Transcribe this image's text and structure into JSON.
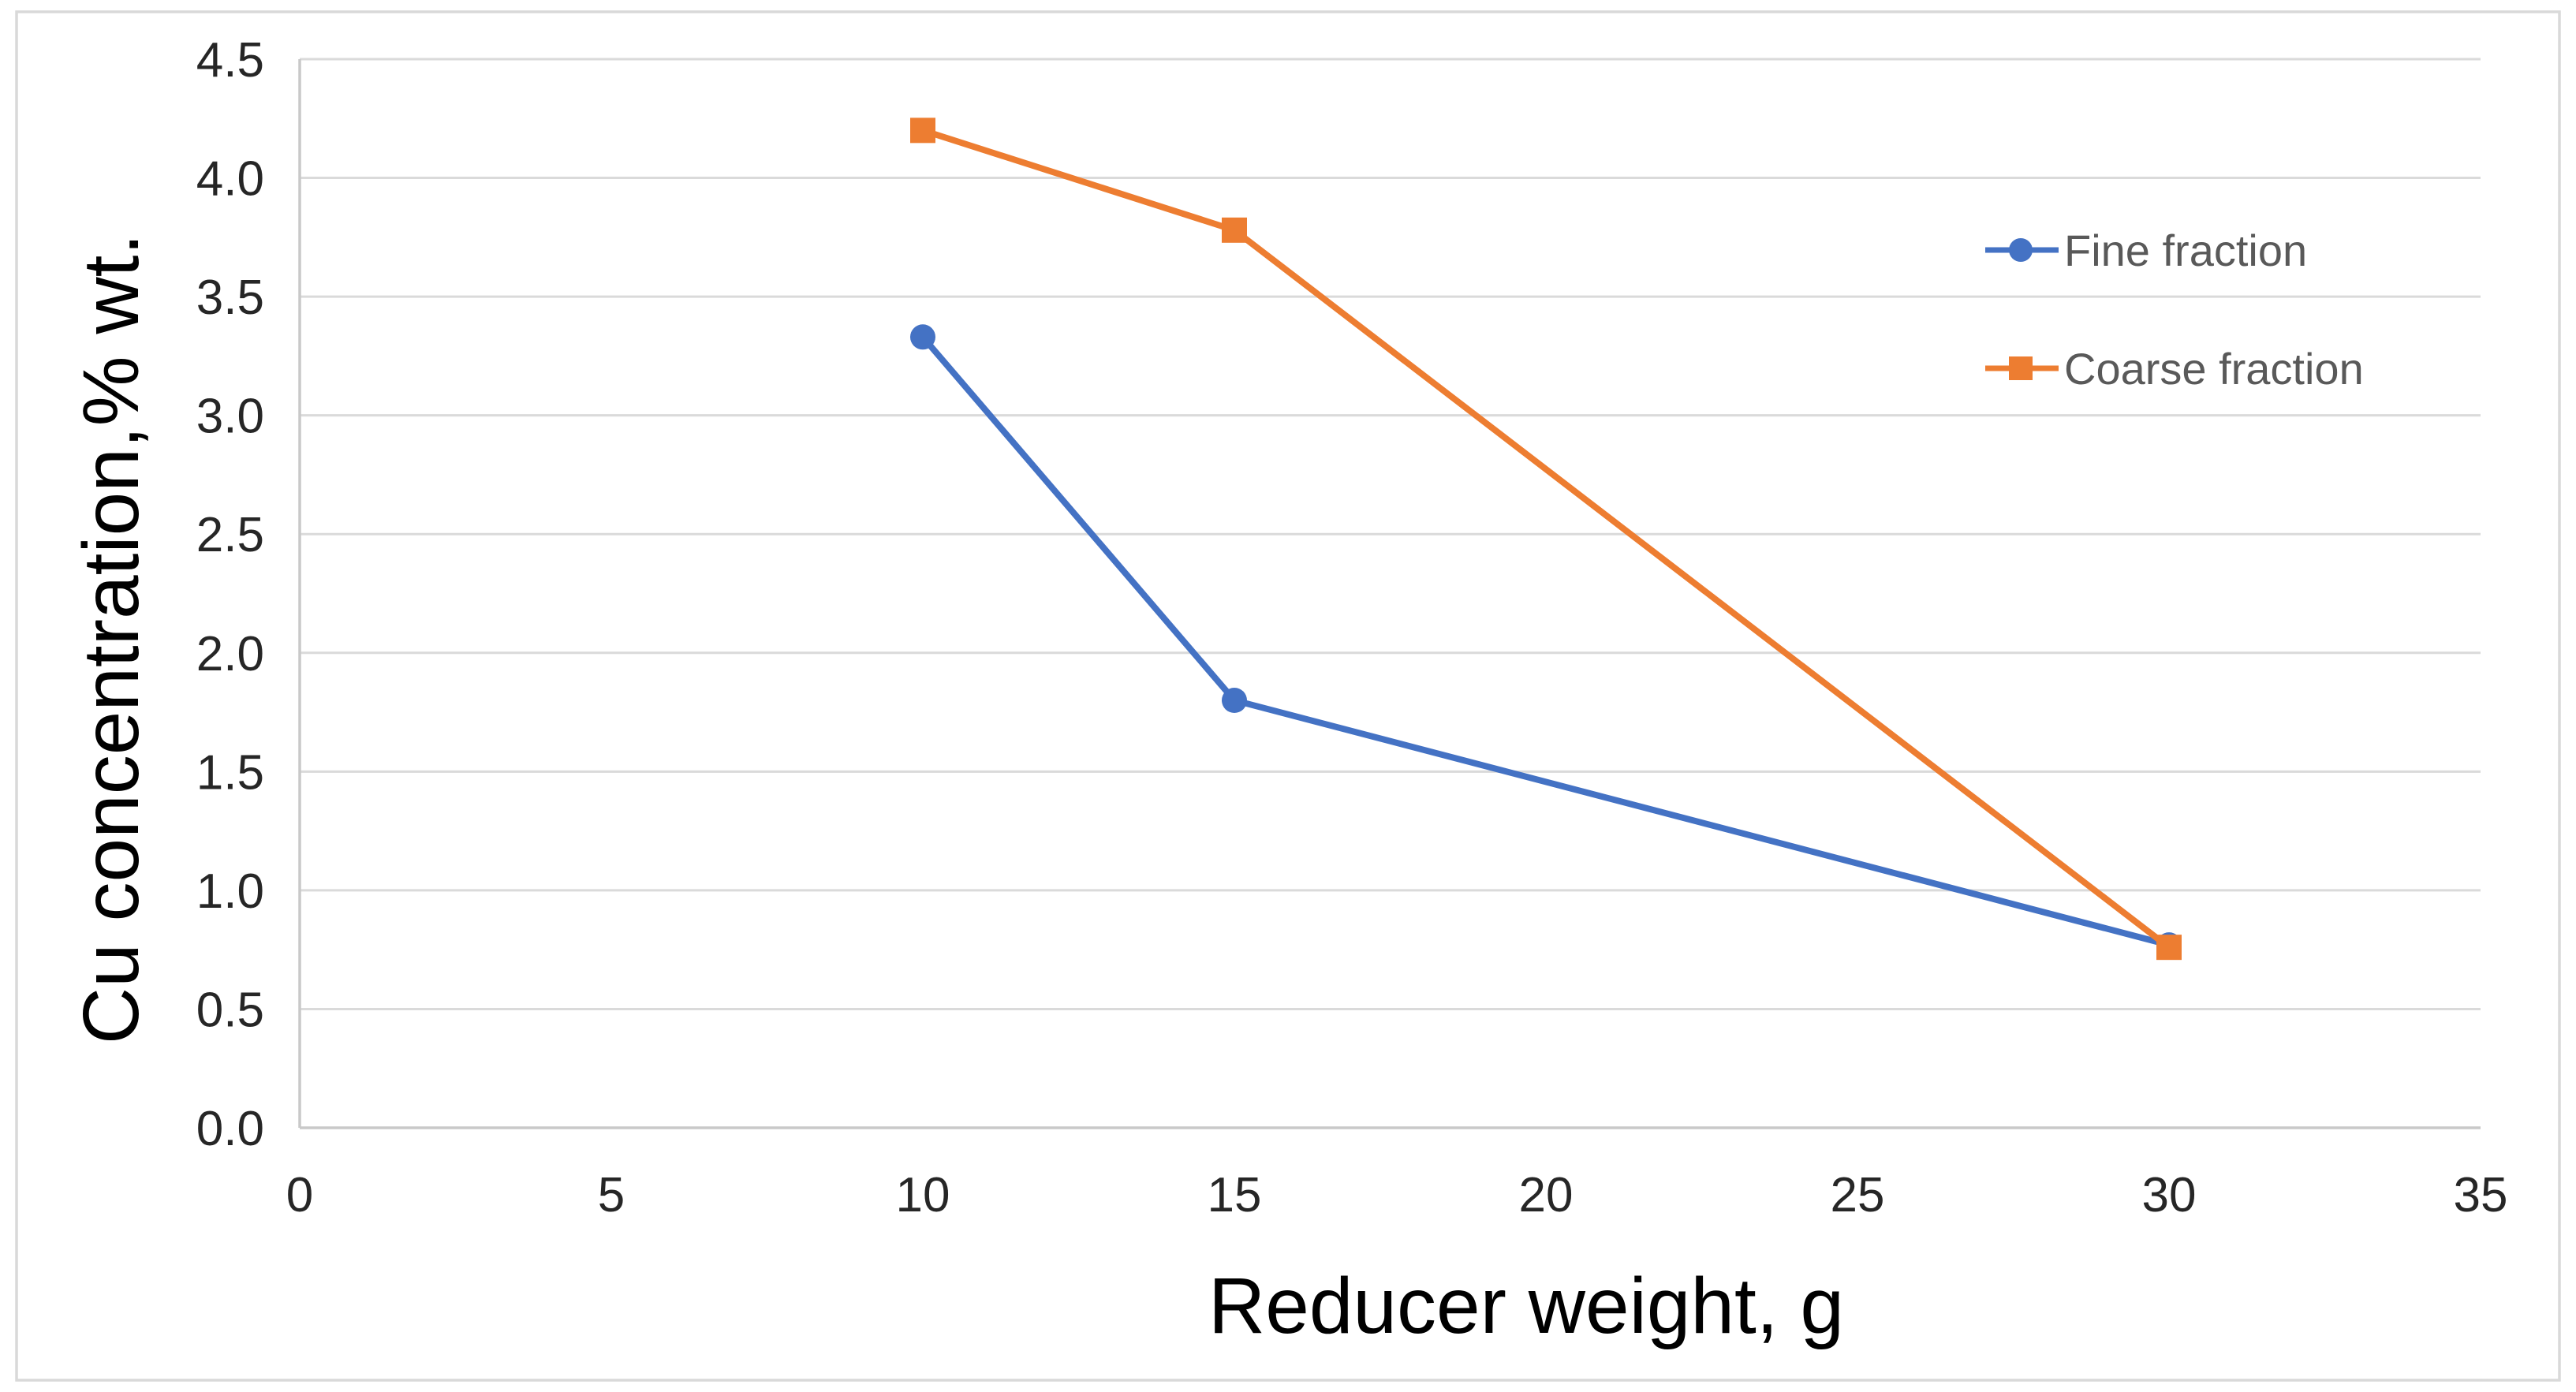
{
  "chart_data": {
    "type": "line",
    "title": "",
    "xlabel": "Reducer weight, g",
    "ylabel": "Cu concentration,% wt.",
    "xlim": [
      0,
      35
    ],
    "ylim": [
      0,
      4.5
    ],
    "x_ticks": [
      "0",
      "5",
      "10",
      "15",
      "20",
      "25",
      "30",
      "35"
    ],
    "x_tick_values": [
      0,
      5,
      10,
      15,
      20,
      25,
      30,
      35
    ],
    "y_ticks": [
      "0.0",
      "0.5",
      "1.0",
      "1.5",
      "2.0",
      "2.5",
      "3.0",
      "3.5",
      "4.0",
      "4.5"
    ],
    "y_tick_values": [
      0,
      0.5,
      1.0,
      1.5,
      2.0,
      2.5,
      3.0,
      3.5,
      4.0,
      4.5
    ],
    "grid": "horizontal",
    "legend_position": "right-inside",
    "series": [
      {
        "name": "Fine fraction",
        "marker": "circle",
        "color": "#4472C4",
        "x": [
          10,
          15,
          30
        ],
        "y": [
          3.33,
          1.8,
          0.77
        ]
      },
      {
        "name": "Coarse fraction",
        "marker": "square",
        "color": "#ED7D31",
        "x": [
          10,
          15,
          30
        ],
        "y": [
          4.2,
          3.78,
          0.76
        ]
      }
    ]
  },
  "colors": {
    "background": "#FFFFFF",
    "outer_border": "#D9D9D9",
    "gridline": "#DADADA",
    "axis_line": "#C9C9C9",
    "tick_text": "#262626",
    "title_text": "#000000",
    "legend_text": "#595959"
  }
}
